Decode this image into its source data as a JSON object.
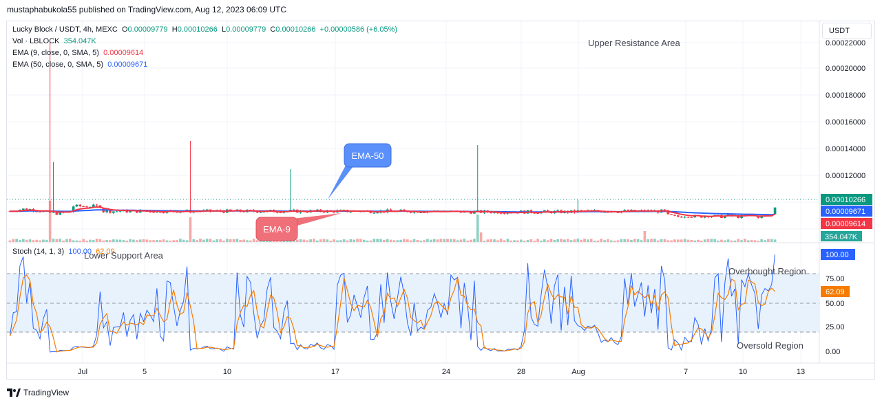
{
  "caption": "mustaphabukola55 published on TradingView.com, Aug 12, 2023 06:09 UTC",
  "legend": {
    "symbol": "Lucky Block / USDT, 4h, MEXC",
    "o_label": "O",
    "o_value": "0.00009779",
    "h_label": "H",
    "h_value": "0.00010266",
    "l_label": "L",
    "l_value": "0.00009779",
    "c_label": "C",
    "c_value": "0.00010266",
    "change": "+0.00000586 (+6.05%)",
    "vol_label": "Vol · LBLOCK",
    "vol_value": "354.047K",
    "ema9_label": "EMA (9, close, 0, SMA, 5)",
    "ema9_value": "0.00009614",
    "ema50_label": "EMA (50, close, 0, SMA, 5)",
    "ema50_value": "0.00009671"
  },
  "currency_button": "USDT",
  "oscillator_label": {
    "name": "Stoch (14, 1, 3)",
    "k": "100.00",
    "d": "62.09"
  },
  "annotations": {
    "upper_resistance": "Upper Resistance Area",
    "lower_support": "Lower Support Area",
    "overbought": "Overbought Region",
    "oversold": "Oversold Region",
    "ema50_callout": "EMA-50",
    "ema9_callout": "EMA-9"
  },
  "footer": "TradingView",
  "colors": {
    "up": "#089981",
    "down": "#f23645",
    "ema9": "#f23645",
    "ema50": "#2962ff",
    "k_line": "#2962ff",
    "d_line": "#f57c00",
    "band": "#e8f2fd",
    "ema50_callout": "#5b8ff9",
    "ema9_callout": "#f0707a"
  },
  "chart_data": [
    {
      "type": "candlestick",
      "title": "Lucky Block / USDT, 4h, MEXC",
      "x_tick_labels": [
        "Jul",
        "5",
        "10",
        "17",
        "24",
        "28",
        "Aug",
        "7",
        "10",
        "13"
      ],
      "y_tick_labels": [
        "0.00022000",
        "0.00020000",
        "0.00018000",
        "0.00016000",
        "0.00014000",
        "0.00012000"
      ],
      "ylim": [
        8e-05,
        0.00022
      ],
      "current_price_label": "0.00010266",
      "ema50_label": "0.00009671",
      "ema9_label": "0.00009614",
      "volume_label": "354.047K",
      "key_levels": {
        "typical_close": 0.0001,
        "max_wick_high": 0.00022,
        "late_low": 9.65e-05
      },
      "series": [
        {
          "name": "EMA (9, close, 0, SMA, 5)",
          "last": 9.614e-05
        },
        {
          "name": "EMA (50, close, 0, SMA, 5)",
          "last": 9.671e-05
        }
      ],
      "grid": true
    },
    {
      "type": "line",
      "title": "Stoch (14, 1, 3)",
      "y_tick_labels": [
        "75.00",
        "50.00",
        "25.00",
        "0.00"
      ],
      "ylim": [
        0,
        100
      ],
      "levels": [
        80,
        50,
        20
      ],
      "series": [
        {
          "name": "K",
          "last": 100.0
        },
        {
          "name": "D",
          "last": 62.09
        }
      ]
    }
  ]
}
